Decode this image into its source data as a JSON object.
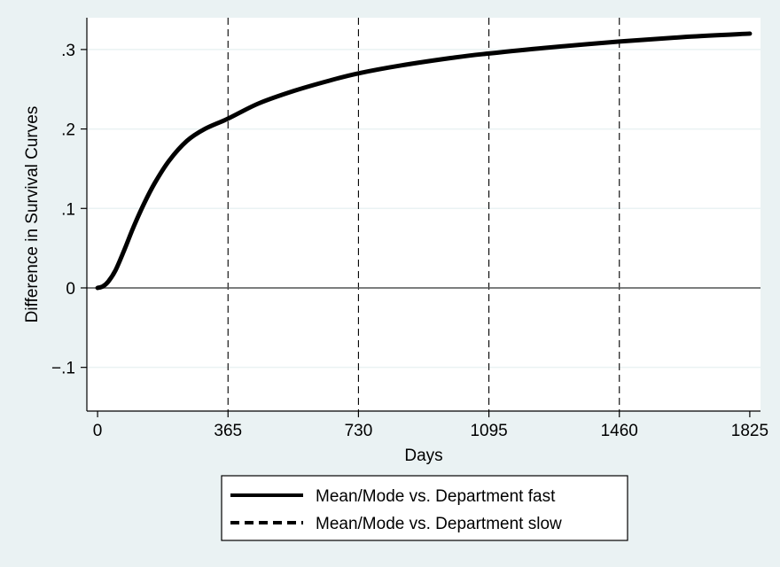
{
  "chart_data": {
    "type": "line",
    "xlabel": "Days",
    "ylabel": "Difference in Survival Curves",
    "xlim": [
      -30,
      1855
    ],
    "ylim": [
      -0.155,
      0.34
    ],
    "x_ticks": [
      0,
      365,
      730,
      1095,
      1460,
      1825
    ],
    "x_tick_labels": [
      "0",
      "365",
      "730",
      "1095",
      "1460",
      "1825"
    ],
    "y_ticks": [
      -0.1,
      0,
      0.1,
      0.2,
      0.3
    ],
    "y_tick_labels": [
      "−.1",
      "0",
      ".1",
      ".2",
      ".3"
    ],
    "grid": true,
    "zero_line": 0,
    "vertical_reference_lines": [
      365,
      730,
      1095,
      1460
    ],
    "series": [
      {
        "name": "Mean/Mode vs. Department fast",
        "style": "solid",
        "color": "#000000",
        "x": [
          0,
          15,
          30,
          50,
          75,
          100,
          130,
          160,
          200,
          250,
          300,
          365,
          450,
          550,
          650,
          730,
          850,
          1000,
          1095,
          1250,
          1460,
          1650,
          1825
        ],
        "y": [
          0,
          0.002,
          0.008,
          0.022,
          0.048,
          0.076,
          0.106,
          0.132,
          0.16,
          0.185,
          0.2,
          0.213,
          0.232,
          0.248,
          0.261,
          0.27,
          0.28,
          0.29,
          0.295,
          0.302,
          0.31,
          0.316,
          0.32
        ]
      },
      {
        "name": "Mean/Mode vs. Department slow",
        "style": "dashed",
        "color": "#000000",
        "x": [],
        "y": []
      }
    ],
    "legend_position": "bottom"
  },
  "colors": {
    "background": "#eaf2f3",
    "plot_background": "#ffffff",
    "grid": "#eaf2f3",
    "line": "#000000"
  }
}
